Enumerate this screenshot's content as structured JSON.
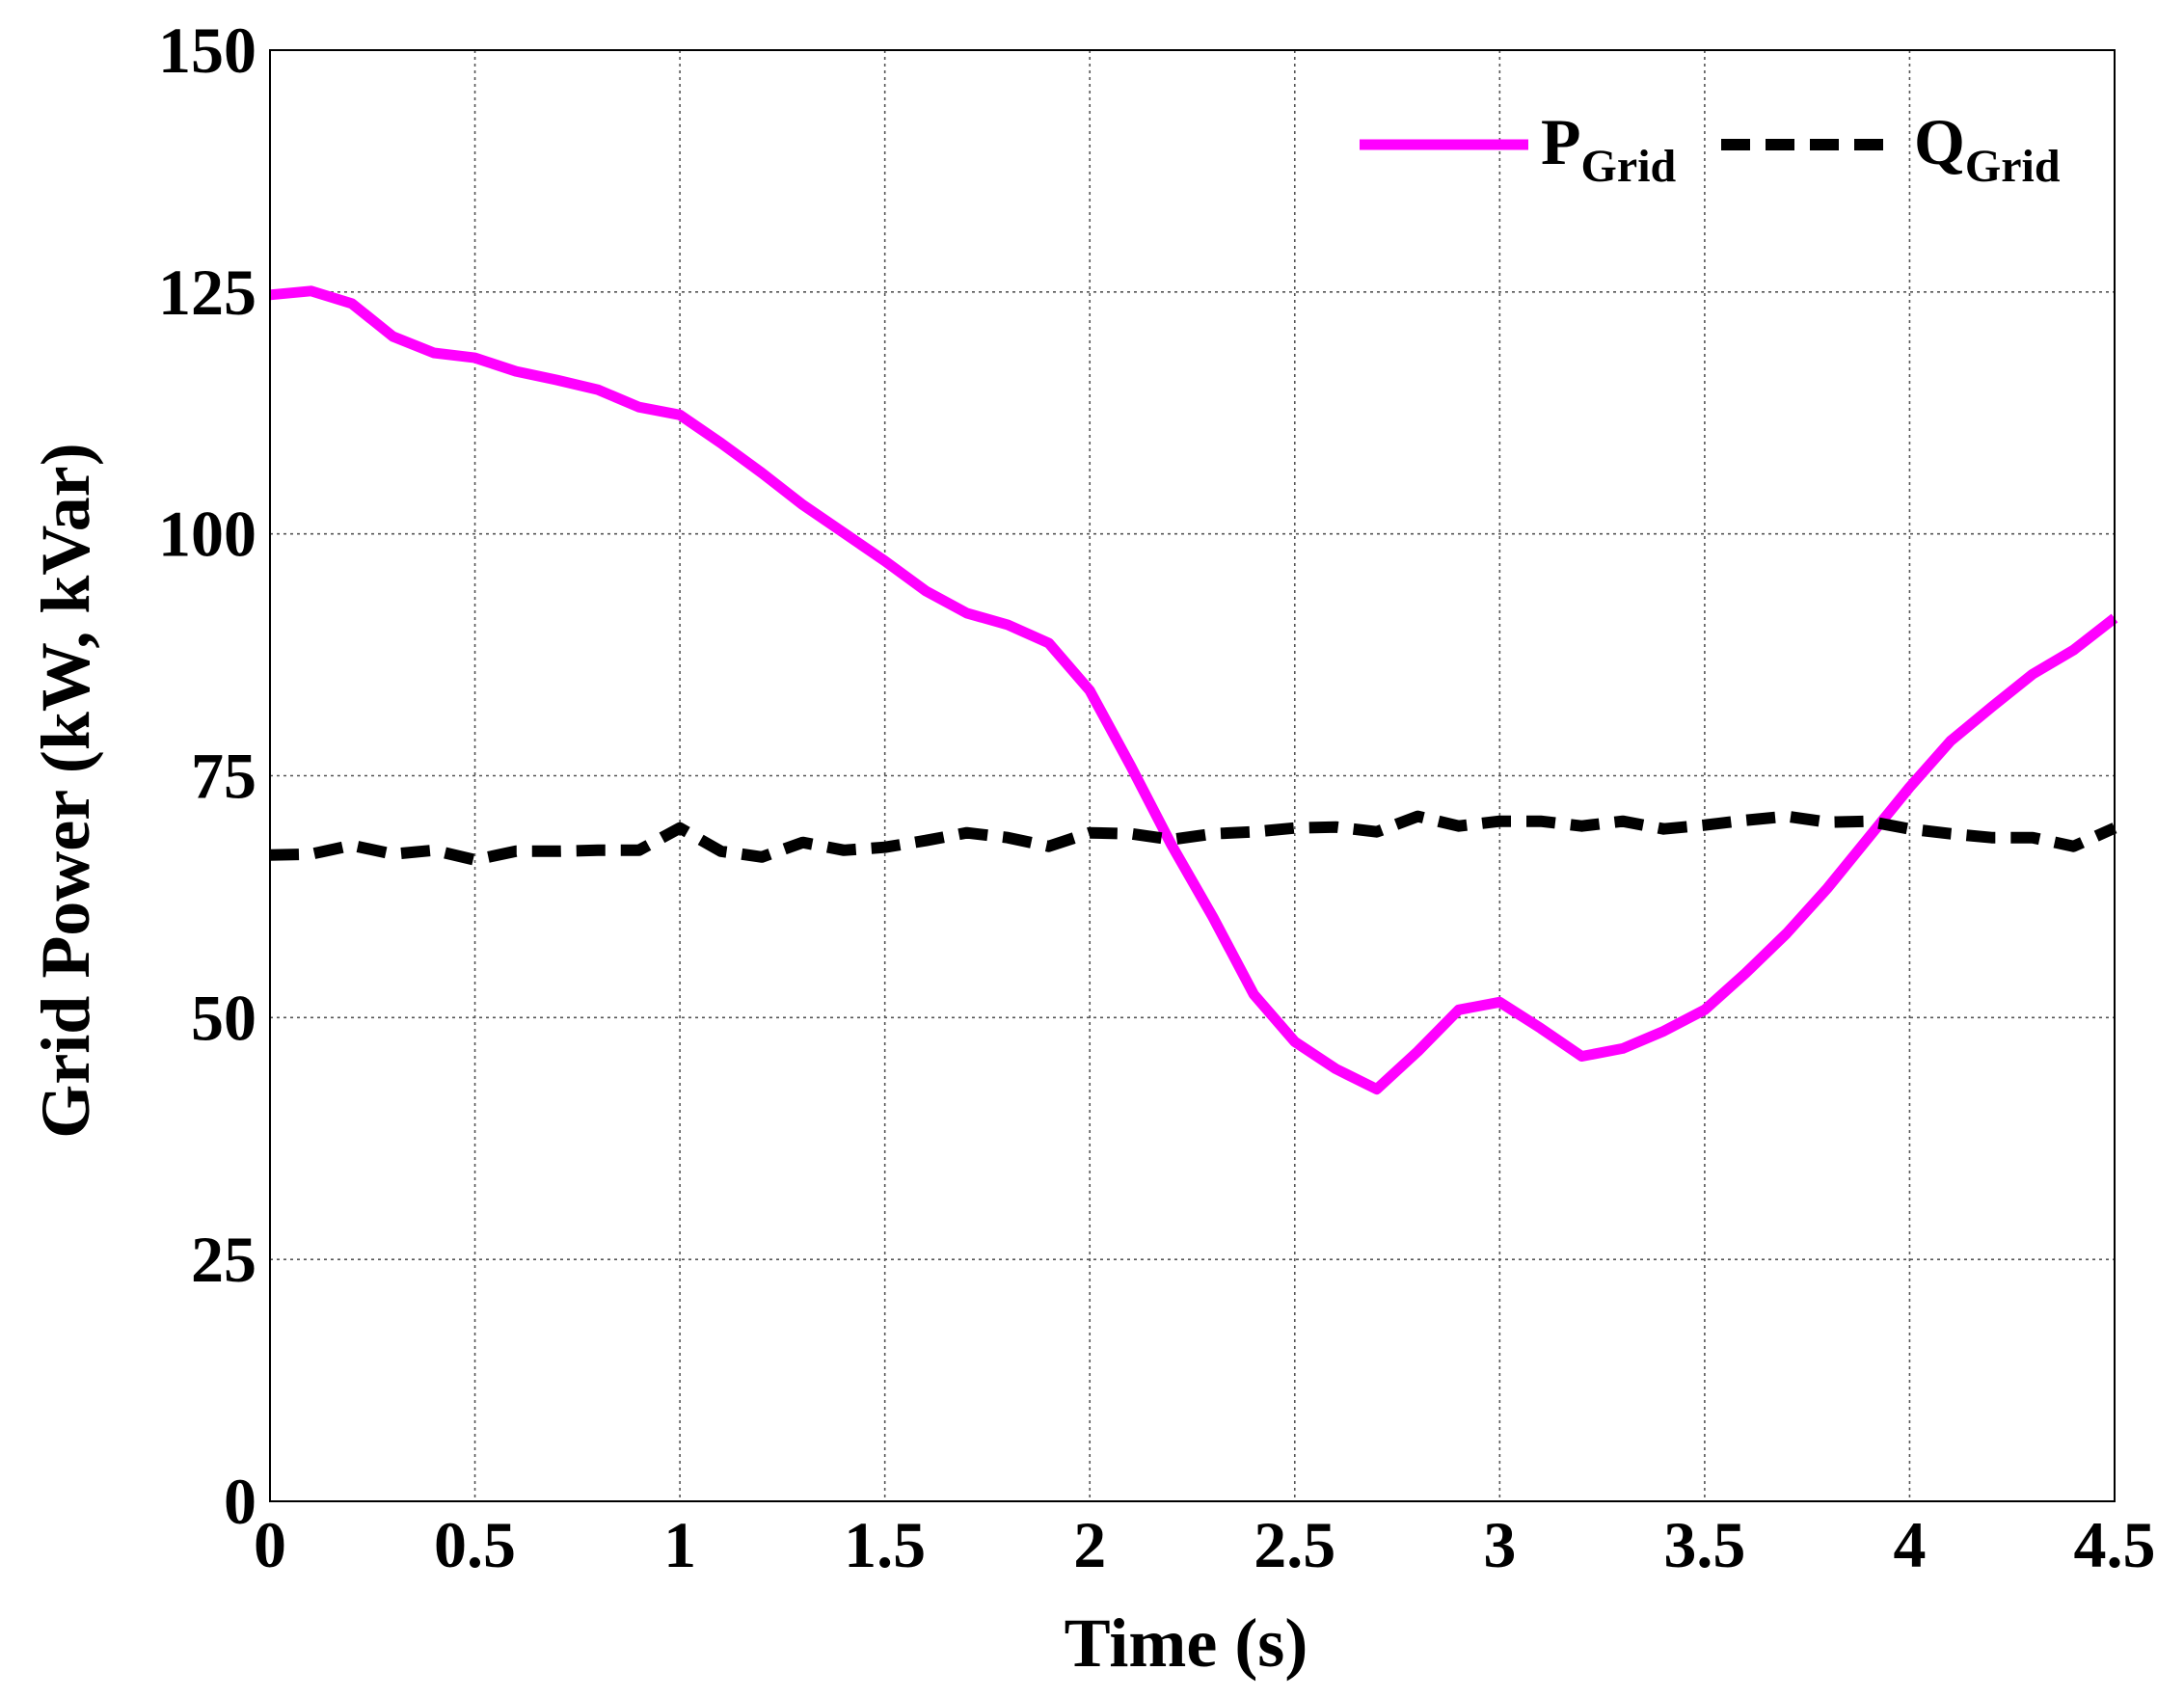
{
  "chart_data": {
    "type": "line",
    "title": "",
    "xlabel": "Time (s)",
    "ylabel": "Grid Power (kW, kVar)",
    "xlim": [
      0,
      4.5
    ],
    "ylim": [
      0,
      150
    ],
    "xticks": [
      0,
      0.5,
      1,
      1.5,
      2,
      2.5,
      3,
      3.5,
      4,
      4.5
    ],
    "yticks": [
      0,
      25,
      50,
      75,
      100,
      125,
      150
    ],
    "xtick_labels": [
      "0",
      "0.5",
      "1",
      "1.5",
      "2",
      "2.5",
      "3",
      "3.5",
      "4",
      "4.5"
    ],
    "ytick_labels": [
      "0",
      "25",
      "50",
      "75",
      "100",
      "125",
      "150"
    ],
    "grid": true,
    "legend_position": "top-right",
    "series": [
      {
        "name": "P",
        "name_sub": "Grid",
        "color": "#ff00ff",
        "style": "solid",
        "x": [
          0,
          0.1,
          0.2,
          0.3,
          0.4,
          0.5,
          0.6,
          0.7,
          0.8,
          0.9,
          1.0,
          1.1,
          1.2,
          1.3,
          1.4,
          1.5,
          1.6,
          1.7,
          1.8,
          1.9,
          2.0,
          2.1,
          2.2,
          2.3,
          2.4,
          2.5,
          2.6,
          2.7,
          2.8,
          2.9,
          3.0,
          3.1,
          3.2,
          3.3,
          3.4,
          3.5,
          3.6,
          3.7,
          3.8,
          3.9,
          4.0,
          4.1,
          4.2,
          4.3,
          4.4,
          4.5
        ],
        "y": [
          124.7,
          125.1,
          123.8,
          120.4,
          118.7,
          118.2,
          116.8,
          115.9,
          114.9,
          113.1,
          112.3,
          109.4,
          106.3,
          103.0,
          100.1,
          97.2,
          94.1,
          91.8,
          90.6,
          88.7,
          83.8,
          76.0,
          67.8,
          60.4,
          52.4,
          47.5,
          44.7,
          42.6,
          46.5,
          50.8,
          51.6,
          48.9,
          46.0,
          46.8,
          48.6,
          50.8,
          54.6,
          58.7,
          63.4,
          68.6,
          73.8,
          78.6,
          82.1,
          85.5,
          88.0,
          91.3
        ]
      },
      {
        "name": "Q",
        "name_sub": "Grid",
        "color": "#000000",
        "style": "dashed",
        "x": [
          0,
          0.1,
          0.2,
          0.3,
          0.4,
          0.5,
          0.6,
          0.7,
          0.8,
          0.9,
          1.0,
          1.1,
          1.2,
          1.3,
          1.4,
          1.5,
          1.6,
          1.7,
          1.8,
          1.9,
          2.0,
          2.1,
          2.2,
          2.3,
          2.4,
          2.5,
          2.6,
          2.7,
          2.8,
          2.9,
          3.0,
          3.1,
          3.2,
          3.3,
          3.4,
          3.5,
          3.6,
          3.7,
          3.8,
          3.9,
          4.0,
          4.1,
          4.2,
          4.3,
          4.4,
          4.5
        ],
        "y": [
          66.8,
          66.9,
          67.8,
          66.9,
          67.3,
          66.3,
          67.2,
          67.2,
          67.3,
          67.3,
          69.6,
          67.2,
          66.6,
          68.1,
          67.3,
          67.6,
          68.3,
          69.1,
          68.6,
          67.7,
          69.1,
          69.0,
          68.4,
          69.0,
          69.2,
          69.6,
          69.7,
          69.2,
          70.8,
          69.8,
          70.3,
          70.3,
          69.8,
          70.3,
          69.5,
          69.9,
          70.4,
          70.8,
          70.2,
          70.3,
          69.5,
          69.0,
          68.6,
          68.6,
          67.7,
          69.6
        ]
      }
    ]
  }
}
